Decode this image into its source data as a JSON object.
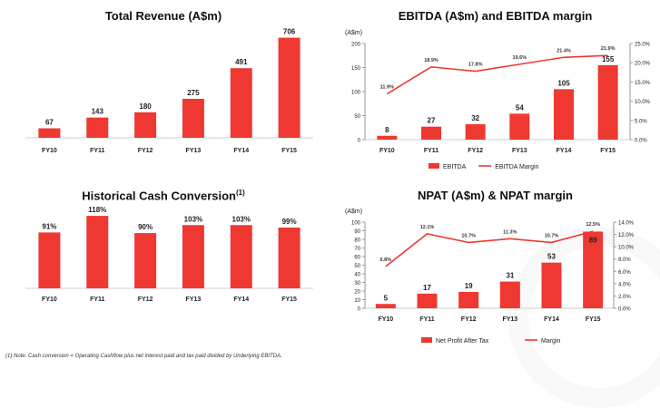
{
  "colors": {
    "bar": "#ee3831",
    "line": "#ee3831",
    "axis": "#999999",
    "text": "#222222"
  },
  "footnote": "(1) Note: Cash conversion = Operating Cashflow plus net interest paid and tax paid divided by Underlying EBITDA.",
  "chart_data": [
    {
      "id": "revenue",
      "type": "bar",
      "title": "Total Revenue (A$m)",
      "categories": [
        "FY10",
        "FY11",
        "FY12",
        "FY13",
        "FY14",
        "FY15"
      ],
      "values": [
        67,
        143,
        180,
        275,
        491,
        706
      ],
      "value_labels": [
        "67",
        "143",
        "180",
        "275",
        "491",
        "706"
      ],
      "ylim": [
        0,
        780
      ],
      "axes_visible": false
    },
    {
      "id": "ebitda",
      "type": "bar",
      "title": "EBITDA (A$m) and EBITDA margin",
      "ylabel": "(A$m)",
      "categories": [
        "FY10",
        "FY11",
        "FY12",
        "FY13",
        "FY14",
        "FY15"
      ],
      "values": [
        8,
        27,
        32,
        54,
        105,
        155
      ],
      "value_labels": [
        "8",
        "27",
        "32",
        "54",
        "105",
        "155"
      ],
      "ylim": [
        0,
        200
      ],
      "yticks": [
        "0",
        "50",
        "100",
        "150",
        "200"
      ],
      "y2lim": [
        0,
        25
      ],
      "y2ticks": [
        "0.0%",
        "5.0%",
        "10.0%",
        "15.0%",
        "20.0%",
        "25.0%"
      ],
      "line": {
        "name": "EBITDA Margin",
        "values": [
          11.9,
          18.9,
          17.8,
          19.6,
          21.4,
          21.9
        ],
        "labels": [
          "11.9%",
          "18.9%",
          "17.8%",
          "19.6%",
          "21.4%",
          "21.9%"
        ]
      },
      "legend": [
        "EBITDA",
        "EBITDA Margin"
      ],
      "legend_position": "bottom"
    },
    {
      "id": "cash",
      "type": "bar",
      "title": "Historical Cash Conversion",
      "title_sup": "(1)",
      "categories": [
        "FY10",
        "FY11",
        "FY12",
        "FY13",
        "FY14",
        "FY15"
      ],
      "values": [
        91,
        118,
        90,
        103,
        103,
        99
      ],
      "value_labels": [
        "91%",
        "118%",
        "90%",
        "103%",
        "103%",
        "99%"
      ],
      "ylim": [
        0,
        130
      ],
      "axes_visible": false
    },
    {
      "id": "npat",
      "type": "bar",
      "title": "NPAT (A$m) & NPAT margin",
      "ylabel": "(A$m)",
      "categories": [
        "FY10",
        "FY11",
        "FY12",
        "FY13",
        "FY14",
        "FY15"
      ],
      "values": [
        5,
        17,
        19,
        31,
        53,
        89
      ],
      "value_labels": [
        "5",
        "17",
        "19",
        "31",
        "53",
        "89"
      ],
      "ylim": [
        0,
        100
      ],
      "yticks": [
        "0",
        "10",
        "20",
        "30",
        "40",
        "50",
        "60",
        "70",
        "80",
        "90",
        "100"
      ],
      "y2lim": [
        0,
        14
      ],
      "y2ticks": [
        "0.0%",
        "2.0%",
        "4.0%",
        "6.0%",
        "8.0%",
        "10.0%",
        "12.0%",
        "14.0%"
      ],
      "line": {
        "name": "Margin",
        "values": [
          6.8,
          12.1,
          10.7,
          11.3,
          10.7,
          12.5
        ],
        "labels": [
          "6.8%",
          "12.1%",
          "10.7%",
          "11.3%",
          "10.7%",
          "12.5%"
        ]
      },
      "legend": [
        "Net Profit After Tax",
        "Margin"
      ],
      "legend_position": "bottom"
    }
  ]
}
